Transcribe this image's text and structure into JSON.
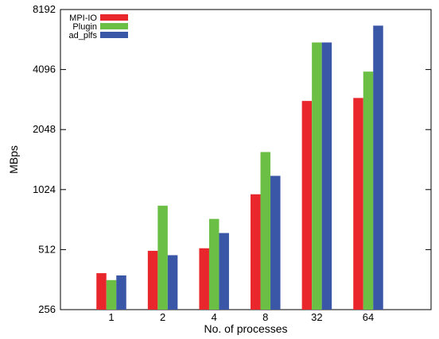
{
  "chart_data": {
    "type": "bar",
    "categories": [
      "1",
      "2",
      "4",
      "8",
      "32",
      "64"
    ],
    "series": [
      {
        "name": "MPI-IO",
        "color": "#e8262b",
        "values": [
          390,
          505,
          520,
          970,
          2850,
          2950
        ]
      },
      {
        "name": "Plugin",
        "color": "#6bbf44",
        "values": [
          360,
          850,
          730,
          1580,
          5600,
          4000
        ]
      },
      {
        "name": "ad_plfs",
        "color": "#3a56a6",
        "values": [
          380,
          480,
          620,
          1200,
          5600,
          6800
        ]
      }
    ],
    "xlabel": "No. of processes",
    "ylabel": "MBps",
    "yscale": "log2",
    "ylim": [
      256,
      8192
    ],
    "yticks": [
      "256",
      "512",
      "1024",
      "2048",
      "4096",
      "8192"
    ],
    "legend_position": "top-left",
    "grid": false
  }
}
